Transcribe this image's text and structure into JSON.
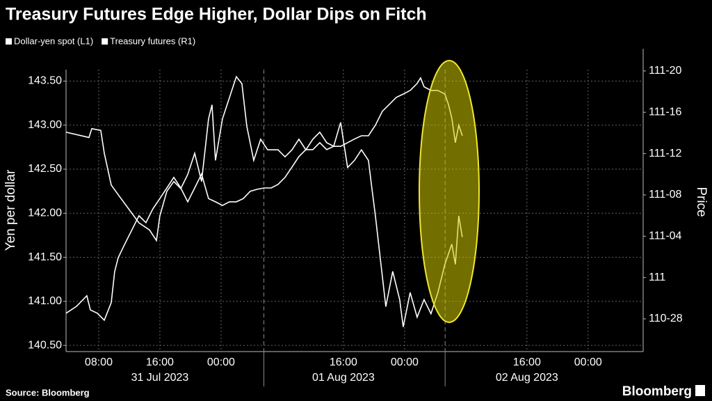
{
  "chart_data": {
    "type": "line",
    "title": "Treasury Futures Edge Higher, Dollar Dips on Fitch",
    "y_label": "Yen per dollar",
    "y2_label": "Price",
    "source": "Source: Bloomberg",
    "brand": "Bloomberg",
    "series": [
      {
        "name": "Dollar-yen spot (L1)",
        "color": "#ffffff",
        "x": [
          3.73,
          6.73,
          7.09,
          8.27,
          8.73,
          9.64,
          10.55,
          11.91,
          13.27,
          14.64,
          15.55,
          16,
          16.91,
          17.82,
          18.73,
          19.64,
          20.55,
          21.45,
          22.36,
          22.82,
          23.27,
          24.18,
          25.09,
          26,
          26.73,
          27.36,
          28.27,
          29.18,
          30.09,
          31.45,
          32.36,
          33.27,
          34.18,
          35.09,
          36,
          36.91,
          37.82,
          38.73,
          39.64,
          40.55,
          41.45,
          42.36,
          43.27,
          43.73,
          44.18,
          44.91,
          45.55,
          46.45,
          47.36,
          47.82,
          48.73,
          49.64,
          50.55,
          51.45,
          52.36,
          53.27,
          54.18,
          54.64,
          55.09,
          55.55
        ],
        "values": [
          142.92,
          142.86,
          142.96,
          142.94,
          142.68,
          142.32,
          142.21,
          142.05,
          141.89,
          141.81,
          141.69,
          141.97,
          142.25,
          142.36,
          142.28,
          142.44,
          142.68,
          142.36,
          143.07,
          143.23,
          142.6,
          143.07,
          143.31,
          143.55,
          143.47,
          142.99,
          142.6,
          142.84,
          142.72,
          142.72,
          142.64,
          142.72,
          142.84,
          142.72,
          142.84,
          142.92,
          142.8,
          142.76,
          143.03,
          142.52,
          142.6,
          142.72,
          142.6,
          142.28,
          141.97,
          141.42,
          140.94,
          141.34,
          141.02,
          140.71,
          141.1,
          140.82,
          141.02,
          140.86,
          141.1,
          141.42,
          141.65,
          141.42,
          141.97,
          141.73
        ]
      },
      {
        "name": "Treasury futures (R1)",
        "color": "#ffffff",
        "axis": "y2",
        "x": [
          3.73,
          5.09,
          6.45,
          6.91,
          7.82,
          8.73,
          9.64,
          10.09,
          10.55,
          11.45,
          12.36,
          13.27,
          14.18,
          15.09,
          16,
          16.91,
          17.82,
          18.73,
          19.64,
          20.55,
          21.45,
          22.36,
          23.27,
          24.18,
          25.09,
          26,
          26.91,
          27.82,
          28.73,
          29.64,
          30.55,
          31.45,
          32.36,
          33.27,
          34.18,
          35.09,
          36,
          36.91,
          37.82,
          38.73,
          39.64,
          40.55,
          41.45,
          42.36,
          43.27,
          44.18,
          45.09,
          46,
          46.91,
          47.82,
          48.73,
          49.64,
          50.09,
          50.55,
          51.45,
          52.36,
          53.27,
          53.73,
          54.18,
          54.64,
          55.09,
          55.55
        ],
        "values": [
          110.892,
          110.913,
          110.945,
          110.902,
          110.892,
          110.871,
          110.924,
          111.018,
          111.06,
          111.103,
          111.145,
          111.187,
          111.166,
          111.208,
          111.239,
          111.271,
          111.303,
          111.271,
          111.229,
          111.271,
          111.313,
          111.239,
          111.229,
          111.218,
          111.229,
          111.229,
          111.239,
          111.261,
          111.267,
          111.271,
          111.271,
          111.282,
          111.303,
          111.334,
          111.366,
          111.387,
          111.387,
          111.408,
          111.387,
          111.397,
          111.397,
          111.408,
          111.419,
          111.429,
          111.429,
          111.461,
          111.503,
          111.524,
          111.545,
          111.555,
          111.566,
          111.587,
          111.604,
          111.577,
          111.566,
          111.566,
          111.555,
          111.524,
          111.482,
          111.408,
          111.461,
          111.429
        ]
      }
    ],
    "xlim": [
      3.73,
      79.2
    ],
    "xticks": [
      {
        "value": 8,
        "label": "08:00"
      },
      {
        "value": 16,
        "label": "16:00"
      },
      {
        "value": 24,
        "label": "00:00"
      },
      {
        "value": 40,
        "label": "16:00"
      },
      {
        "value": 48,
        "label": "00:00"
      },
      {
        "value": 64,
        "label": "16:00"
      },
      {
        "value": 72,
        "label": "00:00"
      }
    ],
    "xdates": [
      {
        "value": 16,
        "label": "31 Jul 2023"
      },
      {
        "value": 40,
        "label": "01 Aug 2023"
      },
      {
        "value": 64,
        "label": "02 Aug 2023"
      }
    ],
    "day_separators": [
      29.6,
      53.3
    ],
    "ylim": [
      140.43,
      143.63
    ],
    "yticks": [
      {
        "value": 140.5,
        "label": "140.50"
      },
      {
        "value": 141,
        "label": "141.00"
      },
      {
        "value": 141.5,
        "label": "141.50"
      },
      {
        "value": 142,
        "label": "142.00"
      },
      {
        "value": 142.5,
        "label": "142.50"
      },
      {
        "value": 143,
        "label": "143.00"
      },
      {
        "value": 143.5,
        "label": "143.50"
      }
    ],
    "y2lim": [
      110.776,
      111.629
    ],
    "y2ticks": [
      {
        "value": 110.875,
        "label": "110-28"
      },
      111,
      {
        "value": 111.125,
        "label": "111-04"
      },
      {
        "value": 111.25,
        "label": "111-08"
      },
      {
        "value": 111.375,
        "label": "111-12"
      },
      {
        "value": 111.5,
        "label": "111-16"
      },
      {
        "value": 111.625,
        "label": "111-20"
      }
    ],
    "grid": true
  }
}
